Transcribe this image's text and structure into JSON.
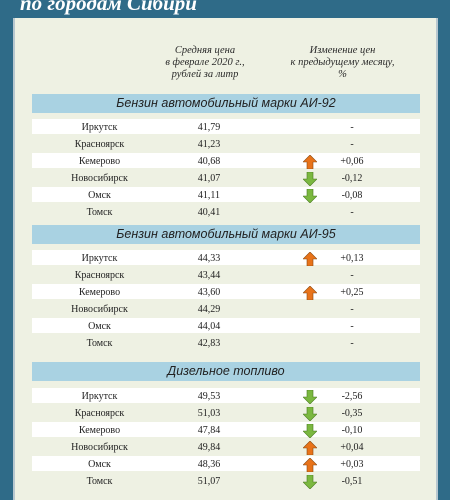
{
  "title": "по городам Сибири",
  "headers": {
    "price": [
      "Средняя цена",
      "в феврале 2020 г.,",
      "рублей за литр"
    ],
    "change": [
      "Изменение цен",
      "к предыдущему месяцу,",
      "%"
    ]
  },
  "colors": {
    "up": "#e8731a",
    "down": "#7bb840",
    "band": "#a9d2e2"
  },
  "sections": [
    {
      "title": "Бензин автомобильный марки АИ-92",
      "rows": [
        {
          "city": "Иркутск",
          "price": "41,79",
          "change": "-",
          "arrow": "none"
        },
        {
          "city": "Красноярск",
          "price": "41,23",
          "change": "-",
          "arrow": "none"
        },
        {
          "city": "Кемерово",
          "price": "40,68",
          "change": "+0,06",
          "arrow": "up"
        },
        {
          "city": "Новосибирск",
          "price": "41,07",
          "change": "-0,12",
          "arrow": "down"
        },
        {
          "city": "Омск",
          "price": "41,11",
          "change": "-0,08",
          "arrow": "down"
        },
        {
          "city": "Томск",
          "price": "40,41",
          "change": "-",
          "arrow": "none"
        }
      ]
    },
    {
      "title": "Бензин автомобильный марки АИ-95",
      "rows": [
        {
          "city": "Иркутск",
          "price": "44,33",
          "change": "+0,13",
          "arrow": "up"
        },
        {
          "city": "Красноярск",
          "price": "43,44",
          "change": "-",
          "arrow": "none"
        },
        {
          "city": "Кемерово",
          "price": "43,60",
          "change": "+0,25",
          "arrow": "up"
        },
        {
          "city": "Новосибирск",
          "price": "44,29",
          "change": "-",
          "arrow": "none"
        },
        {
          "city": "Омск",
          "price": "44,04",
          "change": "-",
          "arrow": "none"
        },
        {
          "city": "Томск",
          "price": "42,83",
          "change": "-",
          "arrow": "none"
        }
      ]
    },
    {
      "title": "Дизельное топливо",
      "rows": [
        {
          "city": "Иркутск",
          "price": "49,53",
          "change": "-2,56",
          "arrow": "down"
        },
        {
          "city": "Красноярск",
          "price": "51,03",
          "change": "-0,35",
          "arrow": "down"
        },
        {
          "city": "Кемерово",
          "price": "47,84",
          "change": "-0,10",
          "arrow": "down"
        },
        {
          "city": "Новосибирск",
          "price": "49,84",
          "change": "+0,04",
          "arrow": "up"
        },
        {
          "city": "Омск",
          "price": "48,36",
          "change": "+0,03",
          "arrow": "up"
        },
        {
          "city": "Томск",
          "price": "51,07",
          "change": "-0,51",
          "arrow": "down"
        }
      ]
    }
  ]
}
